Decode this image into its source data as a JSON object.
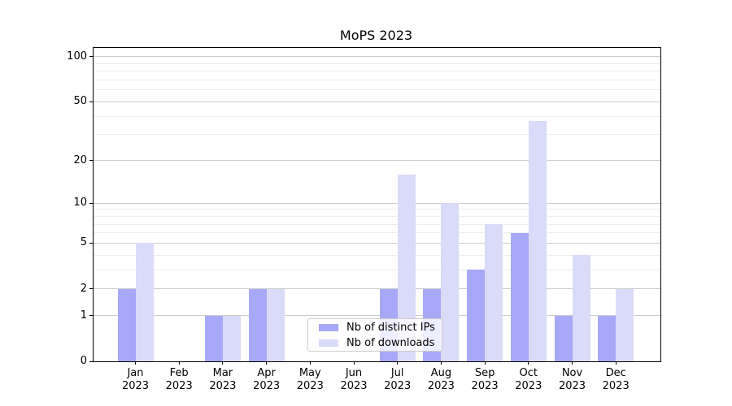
{
  "title": "MoPS 2023",
  "colors": {
    "ips_bar": "#a8a8f8",
    "downloads_bar": "#dadaf9",
    "grid_major": "#cccccc",
    "grid_minor": "#ededed",
    "spine": "#000000",
    "text": "#000000",
    "legend_border": "#cccccc"
  },
  "chart_data": {
    "type": "bar",
    "title": "MoPS 2023",
    "categories": [
      "Jan",
      "Feb",
      "Mar",
      "Apr",
      "May",
      "Jun",
      "Jul",
      "Aug",
      "Sep",
      "Oct",
      "Nov",
      "Dec"
    ],
    "category_year": "2023",
    "series": [
      {
        "name": "Nb of distinct IPs",
        "color": "#a8a8f8",
        "values": [
          2,
          0,
          1,
          2,
          0,
          0,
          2,
          2,
          3,
          6,
          1,
          1
        ]
      },
      {
        "name": "Nb of downloads",
        "color": "#dadaf9",
        "values": [
          5,
          0,
          1,
          2,
          0,
          0,
          16,
          10,
          7,
          37,
          4,
          2
        ]
      }
    ],
    "yscale": "log1p",
    "ylim": [
      0,
      114.6
    ],
    "yticks": [
      0,
      1,
      2,
      5,
      10,
      20,
      50,
      100
    ],
    "yticks_minor": [
      3,
      4,
      6,
      7,
      8,
      9,
      30,
      40,
      60,
      70,
      80,
      90
    ],
    "grid": "horizontal",
    "legend_location": "lower center"
  }
}
